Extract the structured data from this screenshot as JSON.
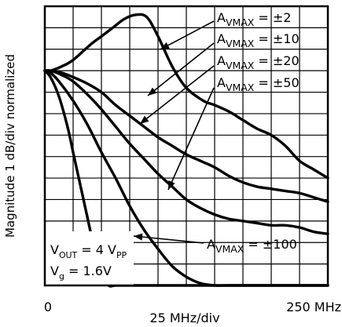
{
  "chart_data": {
    "type": "line",
    "ylabel": "Magnitude 1 dB/div normalized",
    "xlabel": "25 MHz/div",
    "x_tick_labels": {
      "start": "0",
      "end": "250 MHz"
    },
    "xlim": [
      0,
      250
    ],
    "ylim": [
      -10,
      3
    ],
    "grid": true,
    "series": [
      {
        "name": "A_VMAX = ±2",
        "x": [
          0,
          5,
          15,
          25,
          40,
          50,
          60,
          70,
          80,
          90,
          100,
          112.5,
          125,
          140,
          150,
          162.5,
          175,
          187.5,
          200,
          212.5,
          225,
          237.5,
          250
        ],
        "y": [
          0,
          0,
          0.2,
          0.5,
          1.2,
          1.6,
          2.0,
          2.4,
          2.6,
          2.5,
          1.6,
          0.2,
          -0.8,
          -1.4,
          -1.6,
          -1.9,
          -2.3,
          -2.7,
          -3.0,
          -3.5,
          -4.2,
          -4.6,
          -5.0
        ]
      },
      {
        "name": "A_VMAX = ±10",
        "x": [
          0,
          5,
          15,
          25,
          37.5,
          50,
          62.5,
          75,
          87.5,
          100,
          112.5,
          125,
          137.5,
          150,
          162.5,
          175,
          187.5,
          200,
          212.5,
          225,
          237.5,
          250
        ],
        "y": [
          0,
          0,
          -0.1,
          -0.3,
          -0.6,
          -1.0,
          -1.6,
          -2.1,
          -2.6,
          -3.1,
          -3.5,
          -3.9,
          -4.2,
          -4.5,
          -4.9,
          -5.2,
          -5.4,
          -5.5,
          -5.6,
          -5.7,
          -5.9,
          -6.1
        ]
      },
      {
        "name": "A_VMAX = ±20",
        "x": [
          0,
          5,
          15,
          25,
          37.5,
          50,
          62.5,
          75,
          87.5,
          100,
          112.5,
          125,
          137.5,
          150,
          162.5,
          175,
          187.5,
          200,
          212.5,
          225,
          237.5,
          250
        ],
        "y": [
          0,
          0,
          -0.2,
          -0.5,
          -1.1,
          -1.8,
          -2.6,
          -3.4,
          -4.1,
          -4.8,
          -5.4,
          -6.0,
          -6.4,
          -6.7,
          -6.9,
          -7.0,
          -7.1,
          -7.2,
          -7.2,
          -7.3,
          -7.5,
          -7.6
        ]
      },
      {
        "name": "A_VMAX = ±50",
        "x": [
          0,
          5,
          12.5,
          25,
          37.5,
          50,
          62.5,
          75,
          87.5,
          100,
          112.5,
          125,
          137.5,
          150,
          162.5,
          175,
          187.5,
          200,
          212.5,
          225,
          237.5,
          250
        ],
        "y": [
          0,
          -0.1,
          -0.5,
          -1.4,
          -2.5,
          -3.8,
          -5.0,
          -6.3,
          -7.4,
          -8.3,
          -9.1,
          -9.6,
          -9.9,
          -10,
          -10,
          -10,
          -10,
          -10,
          -10,
          -10,
          -10,
          -10
        ]
      },
      {
        "name": "A_VMAX = ±100",
        "x": [
          0,
          5,
          12.5,
          20,
          25,
          30,
          37.5,
          43.75,
          50,
          56.25,
          62.5,
          75,
          100,
          150,
          200,
          250
        ],
        "y": [
          0,
          -0.3,
          -1.2,
          -2.6,
          -3.8,
          -5.0,
          -6.8,
          -8.3,
          -9.5,
          -10,
          -10,
          -10,
          -10,
          -10,
          -10,
          -10
        ]
      }
    ],
    "annotations": [
      {
        "label": {
          "main": "A",
          "sub": "VMAX",
          "rest": " = ±2"
        },
        "points_to_series": 0
      },
      {
        "label": {
          "main": "A",
          "sub": "VMAX",
          "rest": " = ±10"
        },
        "points_to_series": 1
      },
      {
        "label": {
          "main": "A",
          "sub": "VMAX",
          "rest": " = ±20"
        },
        "points_to_series": 2
      },
      {
        "label": {
          "main": "A",
          "sub": "VMAX",
          "rest": " = ±50"
        },
        "points_to_series": 3
      },
      {
        "label": {
          "main": "A",
          "sub": "VMAX",
          "rest": " = ±100"
        },
        "points_to_series": 4
      }
    ],
    "conditions": {
      "vout": {
        "main": "V",
        "sub": "OUT",
        "rest": " = 4 V",
        "sub2": "PP"
      },
      "vg": {
        "main": "V",
        "sub": "g",
        "rest": " = 1.6V"
      }
    }
  }
}
